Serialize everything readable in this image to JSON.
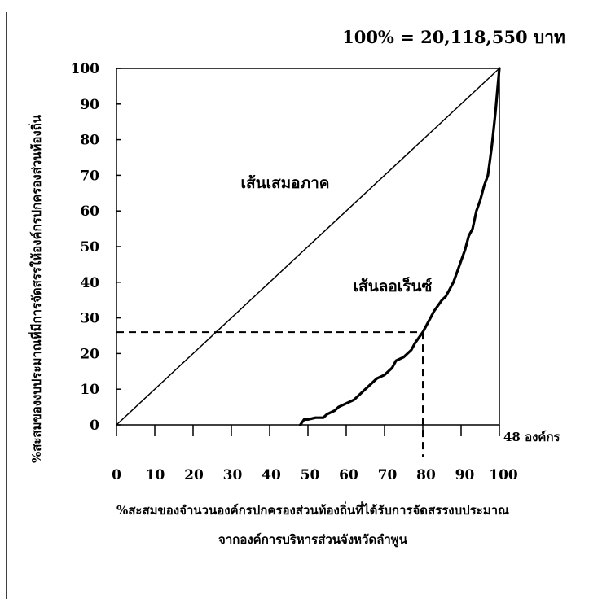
{
  "chart_data": {
    "type": "line",
    "total_note": "100% = 20,118,550 บาท",
    "ylabel": "%สะสมของงบประมาณที่มีการจัดสรรให้องค์กรปกครองส่วนท้องถิ่น",
    "xlabel_line1": "%สะสมของจำนวนองค์กรปกครองส่วนท้องถิ่นที่ได้รับการจัดสรรงบประมาณ",
    "xlabel_line2": "จากองค์การบริหารส่วนจังหวัดลำพูน",
    "x_axis_end_label": "48 องค์กร",
    "xlim": [
      0,
      100
    ],
    "ylim": [
      0,
      100
    ],
    "xticks": [
      "0",
      "10",
      "20",
      "30",
      "40",
      "50",
      "60",
      "70",
      "80",
      "90",
      "100"
    ],
    "yticks": [
      "0",
      "10",
      "20",
      "30",
      "40",
      "50",
      "60",
      "70",
      "80",
      "90",
      "100"
    ],
    "grid": false,
    "series": [
      {
        "name": "เส้นเสมอภาค",
        "x": [
          0,
          100
        ],
        "y": [
          0,
          100
        ]
      },
      {
        "name": "เส้นลอเร็นซ์",
        "x": [
          48,
          49,
          50,
          52,
          54,
          55,
          57,
          58,
          60,
          62,
          63,
          65,
          67,
          68,
          70,
          72,
          73,
          75,
          77,
          78,
          80,
          81,
          82,
          83,
          85,
          86,
          87,
          88,
          89,
          90,
          91,
          92,
          93,
          94,
          95,
          96,
          97,
          97.5,
          98,
          98.5,
          99,
          99.5,
          100
        ],
        "y": [
          0,
          1.5,
          1.5,
          2,
          2,
          3,
          4,
          5,
          6,
          7,
          8,
          10,
          12,
          13,
          14,
          16,
          18,
          19,
          21,
          23,
          26,
          28,
          30,
          32,
          35,
          36,
          38,
          40,
          43,
          46,
          49,
          53,
          55,
          60,
          63,
          67,
          70,
          74,
          78,
          83,
          88,
          94,
          100
        ]
      }
    ],
    "reference_point": {
      "x": 80,
      "y": 26
    },
    "annotations": [
      {
        "text": "เส้นเสมอภาค",
        "target": "equality-line"
      },
      {
        "text": "เส้นลอเร็นซ์",
        "target": "lorenz-curve"
      }
    ]
  }
}
